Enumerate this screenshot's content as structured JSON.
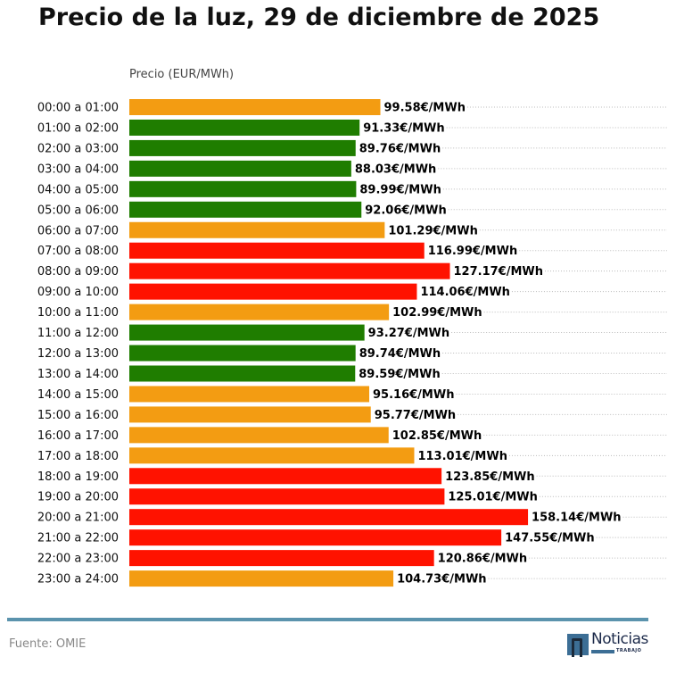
{
  "chart_data": {
    "type": "bar",
    "orientation": "horizontal",
    "title": "Precio de la luz, 29 de diciembre de 2025",
    "xlabel": "Precio (EUR/MWh)",
    "ylabel": "",
    "grid": "dotted horizontal lines",
    "categories": [
      "00:00 a 01:00",
      "01:00 a 02:00",
      "02:00 a 03:00",
      "03:00 a 04:00",
      "04:00 a 05:00",
      "05:00 a 06:00",
      "06:00 a 07:00",
      "07:00 a 08:00",
      "08:00 a 09:00",
      "09:00 a 10:00",
      "10:00 a 11:00",
      "11:00 a 12:00",
      "12:00 a 13:00",
      "13:00 a 14:00",
      "14:00 a 15:00",
      "15:00 a 16:00",
      "16:00 a 17:00",
      "17:00 a 18:00",
      "18:00 a 19:00",
      "19:00 a 20:00",
      "20:00 a 21:00",
      "21:00 a 22:00",
      "22:00 a 23:00",
      "23:00 a 24:00"
    ],
    "values": [
      99.58,
      91.33,
      89.76,
      88.03,
      89.99,
      92.06,
      101.29,
      116.99,
      127.17,
      114.06,
      102.99,
      93.27,
      89.74,
      89.59,
      95.16,
      95.77,
      102.85,
      113.01,
      123.85,
      125.01,
      158.14,
      147.55,
      120.86,
      104.73
    ],
    "levels": [
      "medium",
      "low",
      "low",
      "low",
      "low",
      "low",
      "medium",
      "high",
      "high",
      "high",
      "medium",
      "low",
      "low",
      "low",
      "medium",
      "medium",
      "medium",
      "medium",
      "high",
      "high",
      "high",
      "high",
      "high",
      "medium"
    ],
    "value_suffix": "€/MWh",
    "colors": {
      "low": "#1f7d00",
      "medium": "#f39c12",
      "high": "#ff1200"
    }
  },
  "footer": {
    "source": "Fuente: OMIE",
    "logo_text": "Noticias",
    "logo_subtext": "TRABAJO"
  }
}
